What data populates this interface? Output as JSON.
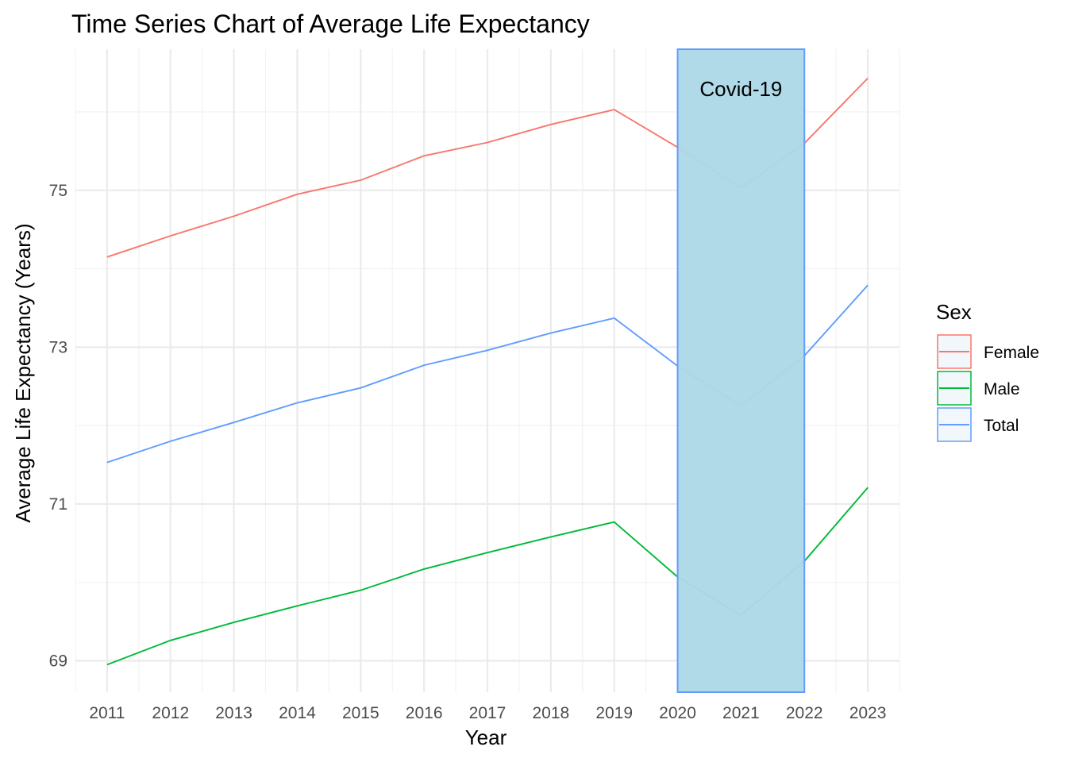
{
  "chart_data": {
    "type": "line",
    "title": "Time Series Chart of Average Life Expectancy",
    "xlabel": "Year",
    "ylabel": "Average Life Expectancy (Years)",
    "x": [
      2011,
      2012,
      2013,
      2014,
      2015,
      2016,
      2017,
      2018,
      2019,
      2020,
      2021,
      2022,
      2023
    ],
    "x_ticks": [
      "2011",
      "2012",
      "2013",
      "2014",
      "2015",
      "2016",
      "2017",
      "2018",
      "2019",
      "2020",
      "2021",
      "2022",
      "2023"
    ],
    "xlim": [
      2010.5,
      2023.5
    ],
    "ylim": [
      68.6,
      76.8
    ],
    "y_ticks": [
      "69",
      "71",
      "73",
      "75"
    ],
    "y_tick_values": [
      69,
      71,
      73,
      75
    ],
    "grid": true,
    "legend": {
      "title": "Sex",
      "position": "right"
    },
    "series": [
      {
        "name": "Female",
        "color": "#F8766D",
        "values": [
          74.15,
          74.42,
          74.67,
          74.95,
          75.13,
          75.44,
          75.61,
          75.84,
          76.03,
          75.55,
          75.03,
          75.6,
          76.43
        ]
      },
      {
        "name": "Male",
        "color": "#00BA38",
        "values": [
          68.95,
          69.26,
          69.49,
          69.7,
          69.9,
          70.17,
          70.38,
          70.58,
          70.77,
          70.07,
          69.58,
          70.27,
          71.21
        ]
      },
      {
        "name": "Total",
        "color": "#619CFF",
        "values": [
          71.53,
          71.8,
          72.04,
          72.29,
          72.48,
          72.77,
          72.96,
          73.18,
          73.37,
          72.76,
          72.25,
          72.89,
          73.79
        ]
      }
    ],
    "annotations": [
      {
        "type": "shaded_region",
        "x_start": 2020,
        "x_end": 2022,
        "fill": "#ADD8E6",
        "border": "#619CFF",
        "label": "Covid-19"
      }
    ]
  }
}
